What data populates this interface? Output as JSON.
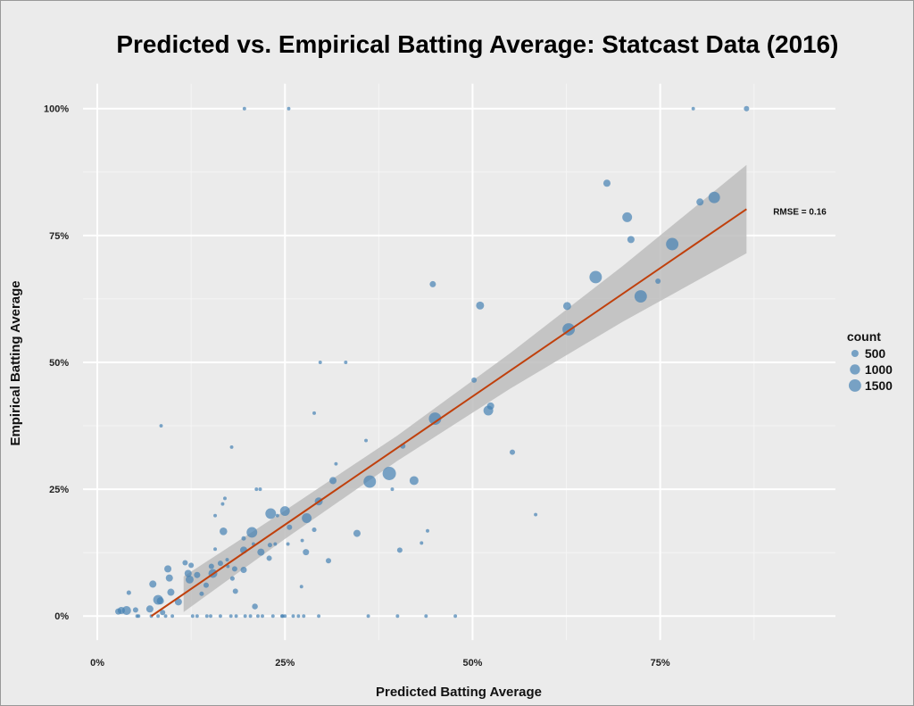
{
  "chart_data": {
    "type": "scatter",
    "title": "Predicted vs. Empirical Batting Average: Statcast Data (2016)",
    "xlabel": "Predicted Batting Average",
    "ylabel": "Empirical Batting Average",
    "xlim": [
      -2,
      98
    ],
    "ylim": [
      -6,
      104
    ],
    "x_ticks": [
      0,
      25,
      50,
      75
    ],
    "x_tick_labels": [
      "0%",
      "25%",
      "50%",
      "75%"
    ],
    "y_ticks": [
      0,
      25,
      50,
      75,
      100
    ],
    "y_tick_labels": [
      "0%",
      "25%",
      "50%",
      "75%",
      "100%"
    ],
    "grid": true,
    "point_color": "#4682b4",
    "fit_color": "#c0400c",
    "ribbon_color": "#bdbdbd",
    "annotation": "RMSE = 0.16",
    "legend": {
      "title": "count",
      "placement": "right",
      "entries": [
        {
          "label": "500",
          "value": 500
        },
        {
          "label": "1000",
          "value": 1000
        },
        {
          "label": "1500",
          "value": 1500
        }
      ]
    },
    "fit_line": {
      "x": [
        7.2,
        86.5
      ],
      "y": [
        0,
        80.2
      ]
    },
    "ribbon": {
      "x": [
        11.5,
        25,
        40,
        55,
        70,
        86.5
      ],
      "lower": [
        0.8,
        15.2,
        30.6,
        44.8,
        58.0,
        71.5
      ],
      "upper": [
        7.8,
        20.8,
        35.6,
        51.8,
        69.0,
        88.9
      ]
    },
    "points_columns": [
      "predicted",
      "empirical",
      "count"
    ],
    "points": [
      [
        19.6,
        100,
        120
      ],
      [
        25.5,
        100,
        120
      ],
      [
        79.4,
        100,
        120
      ],
      [
        86.5,
        100,
        280
      ],
      [
        67.9,
        85.3,
        500
      ],
      [
        80.3,
        81.6,
        500
      ],
      [
        82.2,
        82.5,
        1300
      ],
      [
        70.6,
        78.6,
        930
      ],
      [
        71.1,
        74.2,
        500
      ],
      [
        76.6,
        73.3,
        1500
      ],
      [
        66.4,
        66.8,
        1500
      ],
      [
        72.4,
        63.0,
        1500
      ],
      [
        74.7,
        66.0,
        280
      ],
      [
        62.6,
        61.1,
        620
      ],
      [
        62.8,
        56.5,
        1500
      ],
      [
        44.7,
        65.4,
        380
      ],
      [
        51.0,
        61.2,
        620
      ],
      [
        50.2,
        46.5,
        280
      ],
      [
        52.1,
        40.5,
        930
      ],
      [
        52.4,
        41.4,
        500
      ],
      [
        45.0,
        38.9,
        1500
      ],
      [
        29.7,
        50,
        120
      ],
      [
        33.1,
        50,
        120
      ],
      [
        28.9,
        40.0,
        120
      ],
      [
        40.7,
        33.5,
        280
      ],
      [
        55.3,
        32.3,
        280
      ],
      [
        58.4,
        20,
        120
      ],
      [
        35.8,
        34.6,
        120
      ],
      [
        31.8,
        30,
        120
      ],
      [
        31.4,
        26.7,
        500
      ],
      [
        36.3,
        26.5,
        1500
      ],
      [
        38.9,
        28.1,
        1740
      ],
      [
        42.2,
        26.7,
        770
      ],
      [
        39.3,
        25.0,
        120
      ],
      [
        34.6,
        16.3,
        500
      ],
      [
        40.3,
        13.0,
        280
      ],
      [
        43.2,
        14.4,
        120
      ],
      [
        44.0,
        16.8,
        120
      ],
      [
        30.8,
        10.9,
        280
      ],
      [
        27.2,
        5.8,
        120
      ],
      [
        21.0,
        1.9,
        330
      ],
      [
        8.5,
        37.5,
        120
      ],
      [
        17.9,
        33.3,
        120
      ],
      [
        21.2,
        25,
        120
      ],
      [
        21.7,
        25,
        120
      ],
      [
        17.0,
        23.2,
        120
      ],
      [
        16.7,
        22.1,
        120
      ],
      [
        15.7,
        19.8,
        120
      ],
      [
        16.8,
        16.7,
        570
      ],
      [
        20.6,
        16.5,
        1100
      ],
      [
        23.1,
        20.2,
        1100
      ],
      [
        25.0,
        20.7,
        930
      ],
      [
        24.0,
        19.8,
        120
      ],
      [
        29.5,
        22.6,
        620
      ],
      [
        27.9,
        19.3,
        930
      ],
      [
        25.6,
        17.5,
        280
      ],
      [
        28.9,
        17.0,
        200
      ],
      [
        27.3,
        14.9,
        120
      ],
      [
        25.4,
        14.2,
        120
      ],
      [
        27.8,
        12.6,
        380
      ],
      [
        19.5,
        15.3,
        200
      ],
      [
        20.8,
        14.2,
        120
      ],
      [
        23.0,
        14.0,
        200
      ],
      [
        23.7,
        14.2,
        120
      ],
      [
        19.5,
        13.0,
        500
      ],
      [
        21.8,
        12.6,
        500
      ],
      [
        22.9,
        11.4,
        280
      ],
      [
        15.7,
        13.2,
        120
      ],
      [
        17.3,
        11.1,
        120
      ],
      [
        16.4,
        10.4,
        280
      ],
      [
        17.4,
        9.8,
        120
      ],
      [
        18.3,
        9.3,
        280
      ],
      [
        19.5,
        9.1,
        380
      ],
      [
        15.4,
        8.4,
        770
      ],
      [
        15.2,
        9.8,
        280
      ],
      [
        13.3,
        8.1,
        380
      ],
      [
        12.1,
        8.4,
        500
      ],
      [
        12.3,
        7.2,
        620
      ],
      [
        11.7,
        10.5,
        280
      ],
      [
        12.5,
        10.0,
        280
      ],
      [
        18.0,
        7.4,
        200
      ],
      [
        14.5,
        6.1,
        280
      ],
      [
        13.9,
        4.4,
        200
      ],
      [
        18.4,
        4.9,
        280
      ],
      [
        9.4,
        9.3,
        500
      ],
      [
        9.6,
        7.5,
        500
      ],
      [
        7.4,
        6.3,
        500
      ],
      [
        9.8,
        4.7,
        500
      ],
      [
        8.1,
        3.2,
        930
      ],
      [
        8.4,
        3.0,
        500
      ],
      [
        10.8,
        2.8,
        500
      ],
      [
        8.7,
        0.7,
        280
      ],
      [
        7.0,
        1.4,
        500
      ],
      [
        5.1,
        1.2,
        280
      ],
      [
        4.2,
        4.6,
        200
      ],
      [
        3.9,
        1.1,
        770
      ],
      [
        3.2,
        1.1,
        500
      ],
      [
        2.8,
        0.9,
        380
      ],
      [
        5.3,
        0,
        120
      ],
      [
        5.5,
        0,
        120
      ],
      [
        7.2,
        0,
        120
      ],
      [
        8.1,
        0,
        120
      ],
      [
        9.1,
        0,
        120
      ],
      [
        10.0,
        0,
        120
      ],
      [
        12.7,
        0,
        120
      ],
      [
        13.3,
        0,
        120
      ],
      [
        14.6,
        0,
        120
      ],
      [
        15.1,
        0,
        120
      ],
      [
        16.4,
        0,
        120
      ],
      [
        17.8,
        0,
        120
      ],
      [
        18.5,
        0,
        120
      ],
      [
        19.7,
        0,
        120
      ],
      [
        20.4,
        0,
        120
      ],
      [
        21.4,
        0,
        120
      ],
      [
        22.0,
        0,
        120
      ],
      [
        23.4,
        0,
        120
      ],
      [
        24.6,
        0,
        120
      ],
      [
        24.7,
        0,
        120
      ],
      [
        25.0,
        0,
        120
      ],
      [
        26.1,
        0,
        120
      ],
      [
        26.8,
        0,
        120
      ],
      [
        27.5,
        0,
        120
      ],
      [
        29.5,
        0,
        120
      ],
      [
        36.1,
        0,
        120
      ],
      [
        40.0,
        0,
        120
      ],
      [
        43.8,
        0,
        120
      ],
      [
        47.7,
        0,
        120
      ]
    ]
  }
}
